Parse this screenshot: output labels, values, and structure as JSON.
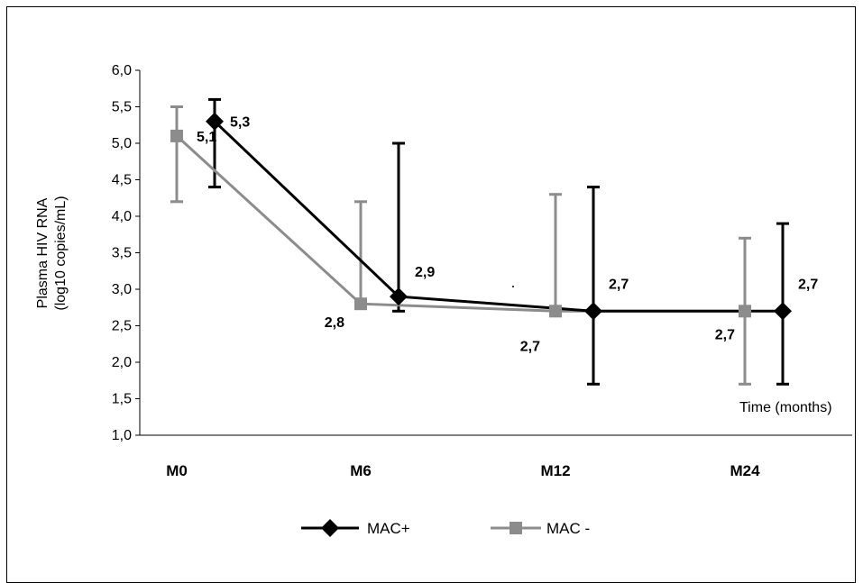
{
  "chart_data": {
    "type": "line",
    "ylabel": [
      "Plasma HIV RNA",
      "(log10 copies/mL)"
    ],
    "annotation": "Time (months)",
    "categories": [
      "M0",
      "M6",
      "M12",
      "M24"
    ],
    "ylim": [
      1.0,
      6.0
    ],
    "yticks": [
      "1,0",
      "1,5",
      "2,0",
      "2,5",
      "3,0",
      "3,5",
      "4,0",
      "4,5",
      "5,0",
      "5,5",
      "6,0"
    ],
    "series": [
      {
        "name": "MAC+",
        "color": "#000000",
        "marker": "diamond",
        "values": [
          5.3,
          2.9,
          2.7,
          2.7
        ],
        "error_upper": [
          5.6,
          5.0,
          4.4,
          3.9
        ],
        "error_lower": [
          4.4,
          2.7,
          1.7,
          1.7
        ],
        "labels": [
          "5,3",
          "2,9",
          "2,7",
          "2,7"
        ]
      },
      {
        "name": "MAC -",
        "color": "#8c8c8c",
        "marker": "square",
        "values": [
          5.1,
          2.8,
          2.7,
          2.7
        ],
        "error_upper": [
          5.5,
          4.2,
          4.3,
          3.7
        ],
        "error_lower": [
          4.2,
          2.8,
          2.7,
          1.7
        ],
        "labels": [
          "5,1",
          "2,8",
          "2,7",
          "2,7"
        ]
      }
    ],
    "legend_position": "bottom",
    "grid": false
  }
}
